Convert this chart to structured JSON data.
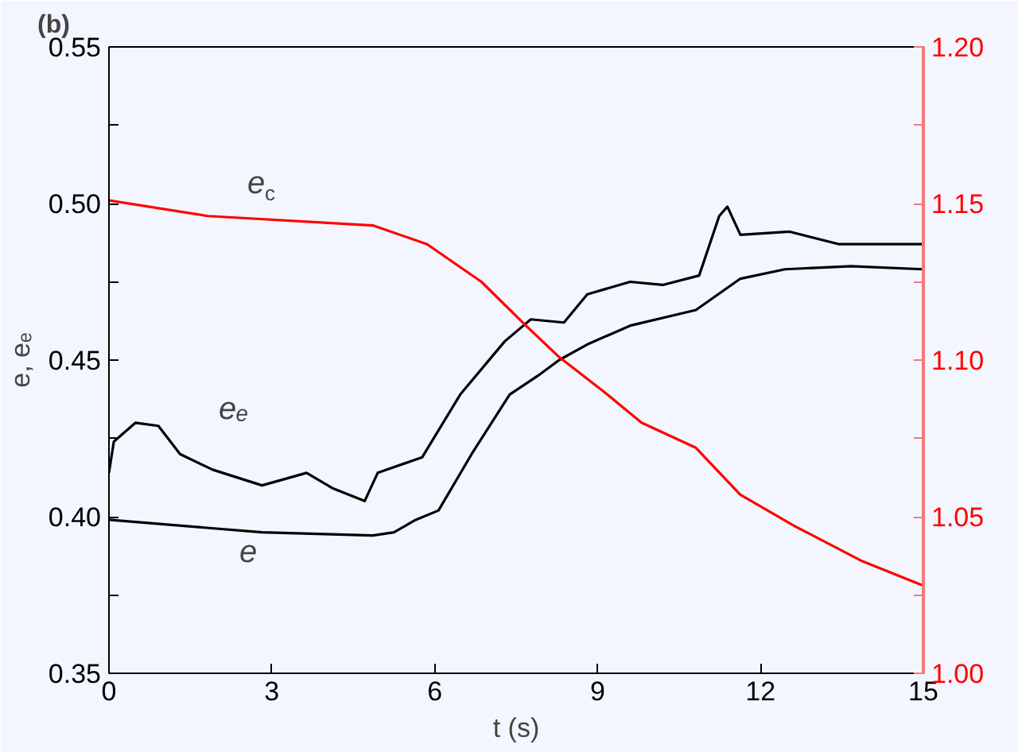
{
  "chart_data": {
    "type": "line",
    "title": "(b)",
    "xlabel": "t (s)",
    "ylabel": "e, eₑ",
    "xlim": [
      0,
      15
    ],
    "xticks": [
      0,
      3,
      6,
      9,
      12,
      15
    ],
    "ylim": [
      0.35,
      0.55
    ],
    "yticks": [
      0.35,
      {
        "value": 0.375,
        "label": null
      },
      "0.40",
      {
        "value": 0.425,
        "label": null
      },
      0.45,
      {
        "value": 0.475,
        "label": null
      },
      "0.50",
      {
        "value": 0.525,
        "label": null
      },
      0.55
    ],
    "y2lim": [
      1.0,
      1.2
    ],
    "y2ticks": [
      "1.00",
      {
        "value": 1.025,
        "label": null
      },
      1.05,
      {
        "value": 1.075,
        "label": null
      },
      "1.10",
      {
        "value": 1.125,
        "label": null
      },
      1.15,
      {
        "value": 1.175,
        "label": null
      },
      "1.20"
    ],
    "grid": false,
    "marker": "none",
    "line_style": "solid",
    "series": [
      {
        "color": "#000000",
        "x": [
          0,
          2.82,
          4.86,
          5.25,
          5.65,
          6.07,
          6.68,
          7.38,
          7.9,
          8.29,
          8.81,
          9.6,
          10.81,
          11.63,
          12.45,
          13.67,
          15
        ],
        "values": [
          0.399,
          0.395,
          0.394,
          0.395,
          0.399,
          0.402,
          0.42,
          0.439,
          0.445,
          0.45,
          0.455,
          0.461,
          0.466,
          0.476,
          0.479,
          0.48,
          0.479
        ]
      },
      {
        "color": "#000000",
        "x": [
          0,
          0.09,
          0.49,
          0.91,
          1.31,
          1.91,
          2.82,
          3.64,
          4.13,
          4.71,
          4.95,
          5.77,
          6.47,
          7.29,
          7.77,
          8.38,
          8.81,
          9.6,
          10.2,
          10.87,
          11.24,
          11.39,
          11.63,
          12.54,
          13.45,
          15
        ],
        "values": [
          0.414,
          0.424,
          0.43,
          0.429,
          0.42,
          0.415,
          0.41,
          0.414,
          0.409,
          0.405,
          0.414,
          0.419,
          0.439,
          0.456,
          0.463,
          0.462,
          0.471,
          0.475,
          0.474,
          0.477,
          0.496,
          0.499,
          0.49,
          0.491,
          0.487,
          0.487
        ]
      },
      {
        "color": "#ff0000",
        "axis": "y2",
        "x": [
          0,
          1.82,
          4.86,
          5.86,
          6.86,
          7.68,
          8.29,
          9.11,
          9.81,
          10.81,
          11.63,
          12.63,
          13.85,
          15
        ],
        "values": [
          1.151,
          1.146,
          1.143,
          1.137,
          1.125,
          1.111,
          1.101,
          1.09,
          1.08,
          1.072,
          1.057,
          1.047,
          1.036,
          1.028
        ]
      }
    ],
    "annotations": [
      "e$_{c}$",
      "eₑ",
      "e"
    ]
  }
}
